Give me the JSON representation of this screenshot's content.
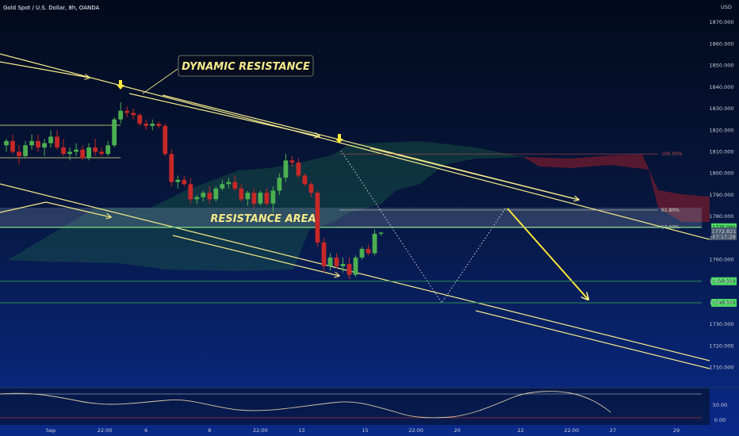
{
  "header": {
    "title": "Gold Spot / U.S. Dollar, 8h, OANDA",
    "currency": "USD"
  },
  "colors": {
    "bull": "#4caf50",
    "bear": "#c62828",
    "annotation": "#f5e98a",
    "arrow": "#ffe93b",
    "support_line": "#2e8b57",
    "cloud": "#1f6b4a",
    "cloud_red": "#6b1a2e",
    "oscillator": "#d9c9a8"
  },
  "chart_data": {
    "type": "candlestick",
    "y_axis": {
      "ticks": [
        1710,
        1720,
        1730,
        1740,
        1750,
        1760,
        1770,
        1780,
        1790,
        1800,
        1810,
        1820,
        1830,
        1840,
        1850,
        1860,
        1870
      ],
      "labels": [
        "1710.000",
        "1720.000",
        "1730.000",
        "1740.000",
        "1750.000",
        "1760.000",
        "1770.000",
        "1780.000",
        "1790.000",
        "1800.000",
        "1810.000",
        "1820.000",
        "1830.000",
        "1840.000",
        "1850.000",
        "1860.000",
        "1870.000"
      ],
      "range": [
        1704,
        1873
      ]
    },
    "x_axis": {
      "range": [
        0,
        110
      ],
      "ticks": [
        {
          "bar": 7,
          "label": "Sep"
        },
        {
          "bar": 15.5,
          "label": "22:00"
        },
        {
          "bar": 22,
          "label": "6"
        },
        {
          "bar": 32,
          "label": "8"
        },
        {
          "bar": 40,
          "label": "22:00"
        },
        {
          "bar": 46.5,
          "label": "13"
        },
        {
          "bar": 56.5,
          "label": "15"
        },
        {
          "bar": 64.5,
          "label": "22:00"
        },
        {
          "bar": 71,
          "label": "20"
        },
        {
          "bar": 81,
          "label": "22"
        },
        {
          "bar": 89,
          "label": "22:00"
        },
        {
          "bar": 95.5,
          "label": "27"
        },
        {
          "bar": 105.5,
          "label": "29"
        }
      ]
    },
    "candles": [
      {
        "o": 1813,
        "h": 1816,
        "l": 1810,
        "c": 1815
      },
      {
        "o": 1815,
        "h": 1818,
        "l": 1809,
        "c": 1810
      },
      {
        "o": 1810,
        "h": 1813,
        "l": 1804,
        "c": 1808
      },
      {
        "o": 1808,
        "h": 1815,
        "l": 1807,
        "c": 1813
      },
      {
        "o": 1813,
        "h": 1818,
        "l": 1811,
        "c": 1815
      },
      {
        "o": 1815,
        "h": 1818,
        "l": 1810,
        "c": 1812
      },
      {
        "o": 1812,
        "h": 1816,
        "l": 1808,
        "c": 1814
      },
      {
        "o": 1814,
        "h": 1820,
        "l": 1812,
        "c": 1817
      },
      {
        "o": 1817,
        "h": 1820,
        "l": 1811,
        "c": 1812
      },
      {
        "o": 1812,
        "h": 1816,
        "l": 1808,
        "c": 1809
      },
      {
        "o": 1809,
        "h": 1812,
        "l": 1806,
        "c": 1810
      },
      {
        "o": 1810,
        "h": 1814,
        "l": 1808,
        "c": 1811
      },
      {
        "o": 1811,
        "h": 1813,
        "l": 1806,
        "c": 1807
      },
      {
        "o": 1807,
        "h": 1814,
        "l": 1806,
        "c": 1812
      },
      {
        "o": 1812,
        "h": 1816,
        "l": 1808,
        "c": 1810
      },
      {
        "o": 1810,
        "h": 1812,
        "l": 1808,
        "c": 1809
      },
      {
        "o": 1809,
        "h": 1815,
        "l": 1808,
        "c": 1813
      },
      {
        "o": 1813,
        "h": 1826,
        "l": 1812,
        "c": 1825
      },
      {
        "o": 1825,
        "h": 1833,
        "l": 1823,
        "c": 1829
      },
      {
        "o": 1829,
        "h": 1831,
        "l": 1826,
        "c": 1828
      },
      {
        "o": 1828,
        "h": 1830,
        "l": 1825,
        "c": 1827
      },
      {
        "o": 1827,
        "h": 1828,
        "l": 1822,
        "c": 1823
      },
      {
        "o": 1823,
        "h": 1825,
        "l": 1820,
        "c": 1822
      },
      {
        "o": 1822,
        "h": 1825,
        "l": 1820,
        "c": 1823
      },
      {
        "o": 1823,
        "h": 1824,
        "l": 1821,
        "c": 1822
      },
      {
        "o": 1822,
        "h": 1823,
        "l": 1808,
        "c": 1809
      },
      {
        "o": 1809,
        "h": 1811,
        "l": 1794,
        "c": 1796
      },
      {
        "o": 1796,
        "h": 1799,
        "l": 1793,
        "c": 1797
      },
      {
        "o": 1797,
        "h": 1799,
        "l": 1794,
        "c": 1795
      },
      {
        "o": 1795,
        "h": 1798,
        "l": 1786,
        "c": 1788
      },
      {
        "o": 1788,
        "h": 1790,
        "l": 1786,
        "c": 1789
      },
      {
        "o": 1789,
        "h": 1792,
        "l": 1787,
        "c": 1791
      },
      {
        "o": 1791,
        "h": 1794,
        "l": 1786,
        "c": 1788
      },
      {
        "o": 1788,
        "h": 1794,
        "l": 1787,
        "c": 1793
      },
      {
        "o": 1793,
        "h": 1797,
        "l": 1792,
        "c": 1795
      },
      {
        "o": 1795,
        "h": 1798,
        "l": 1793,
        "c": 1796
      },
      {
        "o": 1796,
        "h": 1799,
        "l": 1792,
        "c": 1793
      },
      {
        "o": 1793,
        "h": 1795,
        "l": 1787,
        "c": 1788
      },
      {
        "o": 1788,
        "h": 1792,
        "l": 1785,
        "c": 1791
      },
      {
        "o": 1791,
        "h": 1793,
        "l": 1784,
        "c": 1786
      },
      {
        "o": 1786,
        "h": 1792,
        "l": 1785,
        "c": 1791
      },
      {
        "o": 1791,
        "h": 1793,
        "l": 1785,
        "c": 1786
      },
      {
        "o": 1786,
        "h": 1794,
        "l": 1782,
        "c": 1792
      },
      {
        "o": 1792,
        "h": 1800,
        "l": 1790,
        "c": 1798
      },
      {
        "o": 1798,
        "h": 1809,
        "l": 1796,
        "c": 1806
      },
      {
        "o": 1806,
        "h": 1808,
        "l": 1803,
        "c": 1805
      },
      {
        "o": 1805,
        "h": 1807,
        "l": 1798,
        "c": 1799
      },
      {
        "o": 1799,
        "h": 1800,
        "l": 1794,
        "c": 1795
      },
      {
        "o": 1795,
        "h": 1796,
        "l": 1789,
        "c": 1791
      },
      {
        "o": 1791,
        "h": 1792,
        "l": 1766,
        "c": 1768
      },
      {
        "o": 1768,
        "h": 1770,
        "l": 1754,
        "c": 1757
      },
      {
        "o": 1757,
        "h": 1763,
        "l": 1755,
        "c": 1761
      },
      {
        "o": 1761,
        "h": 1763,
        "l": 1756,
        "c": 1757
      },
      {
        "o": 1757,
        "h": 1761,
        "l": 1754,
        "c": 1758
      },
      {
        "o": 1758,
        "h": 1761,
        "l": 1751,
        "c": 1753
      },
      {
        "o": 1753,
        "h": 1762,
        "l": 1752,
        "c": 1761
      },
      {
        "o": 1761,
        "h": 1766,
        "l": 1760,
        "c": 1765
      },
      {
        "o": 1765,
        "h": 1767,
        "l": 1762,
        "c": 1763
      },
      {
        "o": 1763,
        "h": 1774,
        "l": 1762,
        "c": 1772
      },
      {
        "o": 1772,
        "h": 1773,
        "l": 1771,
        "c": 1772.5
      }
    ],
    "horizontal_levels": [
      1775,
      1750,
      1740
    ],
    "fibonacci": [
      {
        "label": "100.00%",
        "value": 1809
      },
      {
        "label": "61.80%",
        "value": 1783
      },
      {
        "label": "50.00%",
        "value": 1775
      }
    ],
    "price_badges": [
      "1775.000",
      "1750.000",
      "1740.000"
    ],
    "last_price_labels": [
      "1772.821",
      "07:17:29"
    ],
    "oscillator": {
      "labels": [
        "50.00",
        "0.00"
      ],
      "range": [
        0,
        100
      ]
    }
  },
  "annotations": {
    "dynamic_resistance": "DYNAMIC RESISTANCE",
    "resistance_area": "RESISTANCE AREA"
  }
}
